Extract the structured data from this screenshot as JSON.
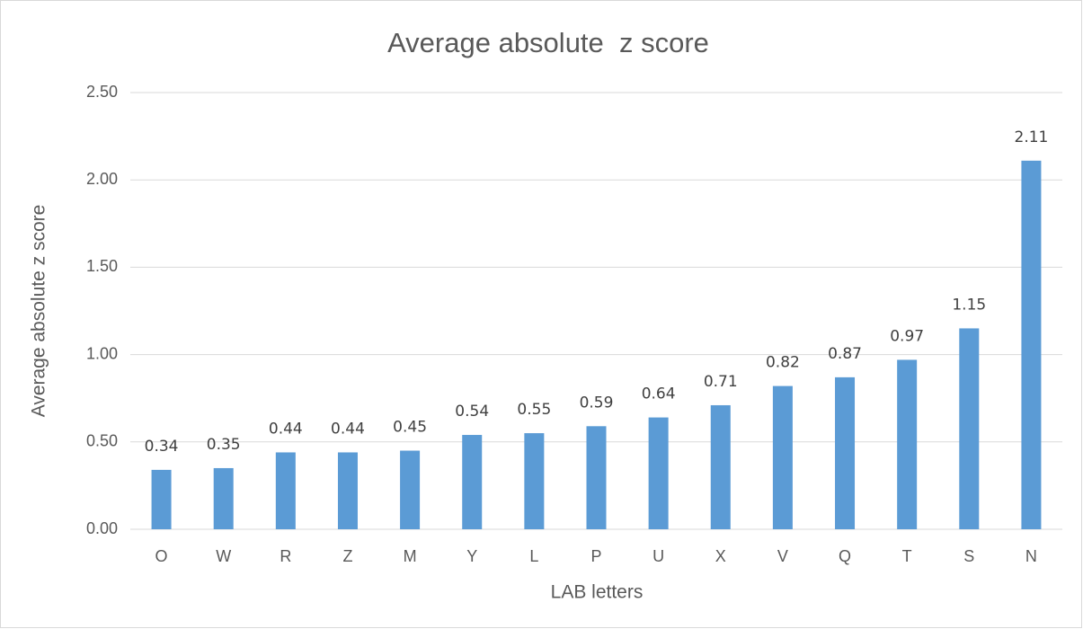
{
  "chart_data": {
    "type": "bar",
    "title": "Average absolute  z score",
    "x_label": "LAB letters",
    "y_label": "Average absolute z score",
    "categories": [
      "O",
      "W",
      "R",
      "Z",
      "M",
      "Y",
      "L",
      "P",
      "U",
      "X",
      "V",
      "Q",
      "T",
      "S",
      "N"
    ],
    "values": [
      0.34,
      0.35,
      0.44,
      0.44,
      0.45,
      0.54,
      0.55,
      0.59,
      0.64,
      0.71,
      0.82,
      0.87,
      0.97,
      1.15,
      2.11
    ],
    "color": "#5b9bd5",
    "ylim": [
      0,
      2.5
    ],
    "yticks": [
      {
        "value": 0,
        "label": "0.00"
      },
      {
        "value": 0.5,
        "label": "0.50"
      },
      {
        "value": 1,
        "label": "1.00"
      },
      {
        "value": 1.5,
        "label": "1.50"
      },
      {
        "value": 2,
        "label": "2.00"
      },
      {
        "value": 2.5,
        "label": "2.50"
      }
    ],
    "grid": true
  }
}
